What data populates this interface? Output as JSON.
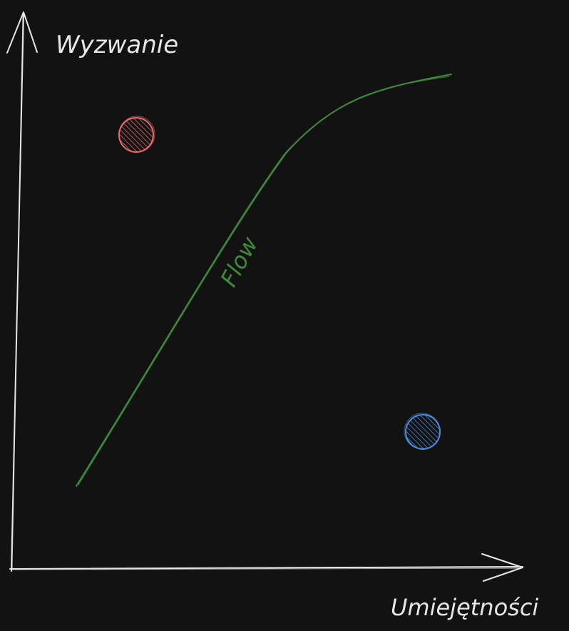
{
  "axes": {
    "y_label": "Wyzwanie",
    "x_label": "Umiejętności"
  },
  "curve": {
    "label": "Flow"
  },
  "colors": {
    "background": "#121212",
    "axis": "#e6e6e6",
    "flow": "#3d8b3d",
    "anxiety_dot": "#f06a6a",
    "boredom_dot": "#4a8fe0"
  }
}
